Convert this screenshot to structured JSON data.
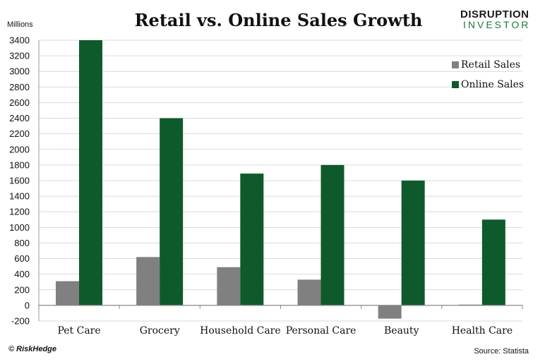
{
  "header": {
    "title": "Retail vs. Online Sales Growth",
    "logo_line1": "DISRUPTION",
    "logo_line2": "INVESTOR"
  },
  "footer": {
    "copyright": "© RiskHedge",
    "source": "Source: Statista"
  },
  "chart_data": {
    "type": "bar",
    "title": "Retail vs. Online Sales Growth",
    "ylabel": "Millions",
    "xlabel": "",
    "categories": [
      "Pet Care",
      "Grocery",
      "Household Care",
      "Personal Care",
      "Beauty",
      "Health Care"
    ],
    "series": [
      {
        "name": "Retail Sales",
        "color": "#808080",
        "values": [
          310,
          620,
          490,
          330,
          -170,
          10
        ]
      },
      {
        "name": "Online Sales",
        "color": "#0f5a2a",
        "values": [
          3400,
          2400,
          1690,
          1800,
          1600,
          1100
        ]
      }
    ],
    "ylim": [
      -200,
      3400
    ],
    "yticks": [
      -200,
      0,
      200,
      400,
      600,
      800,
      1000,
      1200,
      1400,
      1600,
      1800,
      2000,
      2200,
      2400,
      2600,
      2800,
      3000,
      3200,
      3400
    ],
    "grid": true,
    "legend_position": "top-right"
  }
}
